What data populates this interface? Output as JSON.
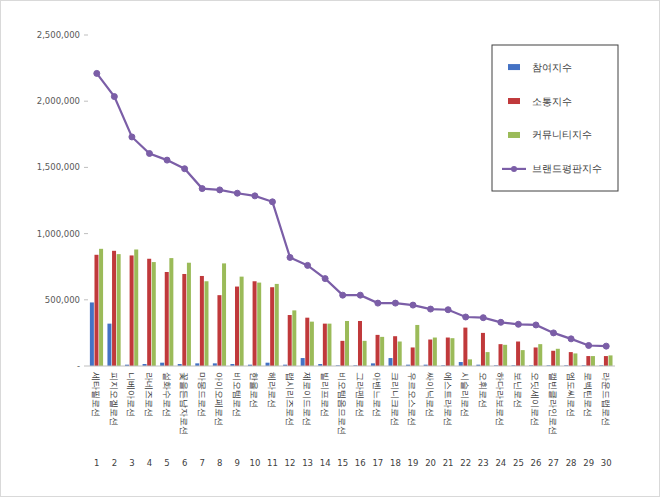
{
  "chart_data": {
    "type": "bar",
    "categories": [
      "세타필로션",
      "피지오겔로션",
      "니베아로션",
      "라네즈로션",
      "설화수로션",
      "꽃을든남자로션",
      "마몽드로션",
      "아이오페로션",
      "비오템로션",
      "한율로션",
      "헤라로션",
      "랩시리즈로션",
      "제로이드로션",
      "빌리프로션",
      "비오템옴므로션",
      "그라펜로션",
      "아벤느로션",
      "크리니크로션",
      "우르오스로션",
      "싸이닉로션",
      "에스트라로션",
      "시슬리로션",
      "오휘로션",
      "하다라보로션",
      "보닌로션",
      "오딧세이로션",
      "캘빈클라인로션",
      "엠도씨로션",
      "로벡틴로션",
      "라운드랩로션"
    ],
    "category_numbers": [
      1,
      2,
      3,
      4,
      5,
      6,
      7,
      8,
      9,
      10,
      11,
      12,
      13,
      14,
      15,
      16,
      17,
      18,
      19,
      20,
      21,
      22,
      23,
      24,
      25,
      26,
      27,
      28,
      29,
      30
    ],
    "series": [
      {
        "name": "참여지수",
        "color": "#4472c4",
        "type": "bar",
        "values": [
          480000,
          320000,
          10000,
          15000,
          25000,
          15000,
          20000,
          20000,
          15000,
          10000,
          25000,
          10000,
          60000,
          15000,
          5000,
          5000,
          20000,
          60000,
          10000,
          10000,
          5000,
          30000,
          10000,
          5000,
          5000,
          5000,
          5000,
          5000,
          5000,
          5000
        ]
      },
      {
        "name": "소통지수",
        "color": "#c0393b",
        "type": "bar",
        "values": [
          840000,
          870000,
          835000,
          810000,
          710000,
          695000,
          680000,
          535000,
          600000,
          640000,
          595000,
          385000,
          365000,
          320000,
          190000,
          340000,
          235000,
          225000,
          140000,
          200000,
          215000,
          290000,
          250000,
          165000,
          185000,
          140000,
          115000,
          105000,
          75000,
          75000
        ]
      },
      {
        "name": "커뮤니티지수",
        "color": "#9bbb59",
        "type": "bar",
        "values": [
          885000,
          845000,
          880000,
          785000,
          815000,
          780000,
          640000,
          775000,
          675000,
          630000,
          620000,
          420000,
          335000,
          320000,
          340000,
          190000,
          220000,
          185000,
          310000,
          215000,
          210000,
          50000,
          105000,
          160000,
          120000,
          165000,
          130000,
          95000,
          75000,
          80000
        ]
      },
      {
        "name": "브랜드평판지수",
        "color": "#7b5ea7",
        "type": "line",
        "marker": "circle",
        "values": [
          2210000,
          2035000,
          1730000,
          1605000,
          1555000,
          1490000,
          1340000,
          1330000,
          1305000,
          1285000,
          1240000,
          820000,
          760000,
          660000,
          535000,
          535000,
          475000,
          475000,
          460000,
          430000,
          425000,
          370000,
          365000,
          330000,
          315000,
          310000,
          250000,
          205000,
          155000,
          150000
        ]
      }
    ],
    "ylim": [
      0,
      2500000
    ],
    "yticks": [
      {
        "value": 0,
        "label": "-"
      },
      {
        "value": 500000,
        "label": "500,000"
      },
      {
        "value": 1000000,
        "label": "1,000,000"
      },
      {
        "value": 1500000,
        "label": "1,500,000"
      },
      {
        "value": 2000000,
        "label": "2,000,000"
      },
      {
        "value": 2500000,
        "label": "2,500,000"
      }
    ],
    "grid": false,
    "legend": "top-right",
    "data_labels": false
  }
}
